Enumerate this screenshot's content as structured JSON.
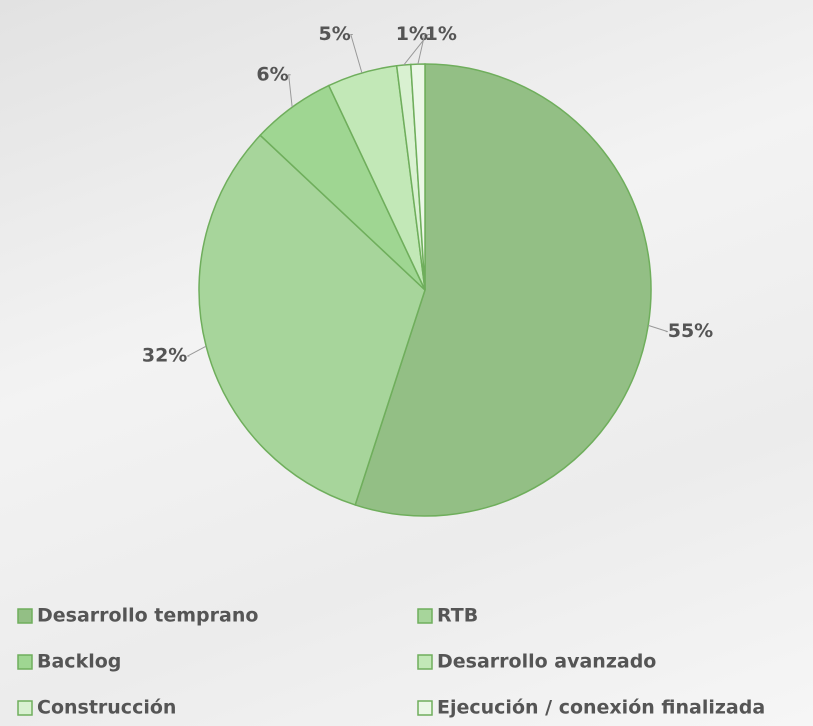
{
  "chart_data": {
    "type": "pie",
    "categories": [
      "Desarrollo temprano",
      "RTB",
      "Backlog",
      "Desarrollo avanzado",
      "Construcción",
      "Ejecución / conexión finalizada"
    ],
    "values": [
      55,
      32,
      6,
      5,
      1,
      1
    ],
    "value_labels": [
      "55%",
      "32%",
      "6%",
      "5%",
      "1%",
      "1%"
    ],
    "colors": [
      "#93bf85",
      "#a7d59b",
      "#9fd692",
      "#c2e8b7",
      "#d9f1d1",
      "#ebf7e7"
    ]
  }
}
